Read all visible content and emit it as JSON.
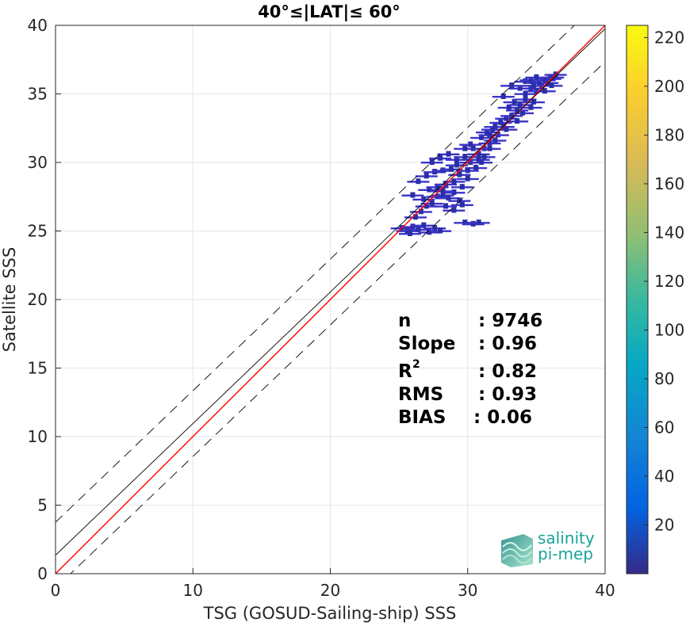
{
  "chart_data": {
    "type": "heatmap",
    "title": "40°≤|LAT|≤ 60°",
    "xlabel": "TSG (GOSUD-Sailing-ship) SSS",
    "ylabel": "Satellite SSS",
    "xlim": [
      0,
      40
    ],
    "ylim": [
      0,
      40
    ],
    "xticks": [
      "0",
      "10",
      "20",
      "30",
      "40"
    ],
    "yticks": [
      "0",
      "5",
      "10",
      "15",
      "20",
      "25",
      "30",
      "35",
      "40"
    ],
    "grid": true,
    "colorbar": {
      "range": [
        0,
        225
      ],
      "ticks": [
        "20",
        "40",
        "60",
        "80",
        "100",
        "120",
        "140",
        "160",
        "180",
        "200",
        "220"
      ],
      "colormap": "parula"
    },
    "lines": [
      {
        "name": "identity",
        "slope": 1,
        "intercept": 0,
        "color": "#ff0000",
        "style": "solid"
      },
      {
        "name": "regression",
        "slope": 0.96,
        "intercept": 1.35,
        "color": "#000000",
        "style": "solid"
      },
      {
        "name": "upper",
        "slope": 0.96,
        "intercept": 3.75,
        "color": "#000000",
        "style": "dashed"
      },
      {
        "name": "lower",
        "slope": 0.96,
        "intercept": -1.05,
        "color": "#000000",
        "style": "dashed"
      }
    ],
    "density_points": [
      [
        25.2,
        25.2
      ],
      [
        25.6,
        25.0
      ],
      [
        26.0,
        25.3
      ],
      [
        26.4,
        25.1
      ],
      [
        26.8,
        25.4
      ],
      [
        27.2,
        24.9
      ],
      [
        25.8,
        24.8
      ],
      [
        27.6,
        25.2
      ],
      [
        28.0,
        25.0
      ],
      [
        29.8,
        25.6
      ],
      [
        30.4,
        25.5
      ],
      [
        30.8,
        25.6
      ],
      [
        26.2,
        26.0
      ],
      [
        26.6,
        26.4
      ],
      [
        27.0,
        26.8
      ],
      [
        27.4,
        27.0
      ],
      [
        26.8,
        27.3
      ],
      [
        27.8,
        27.5
      ],
      [
        28.2,
        27.6
      ],
      [
        28.6,
        27.4
      ],
      [
        29.0,
        27.8
      ],
      [
        29.4,
        27.2
      ],
      [
        28.4,
        26.8
      ],
      [
        29.0,
        26.5
      ],
      [
        29.6,
        26.9
      ],
      [
        27.2,
        28.0
      ],
      [
        27.8,
        28.2
      ],
      [
        28.4,
        28.4
      ],
      [
        29.0,
        28.6
      ],
      [
        29.6,
        28.2
      ],
      [
        30.0,
        28.8
      ],
      [
        26.4,
        28.6
      ],
      [
        27.0,
        29.0
      ],
      [
        27.6,
        29.3
      ],
      [
        28.2,
        29.4
      ],
      [
        28.8,
        29.5
      ],
      [
        29.4,
        29.1
      ],
      [
        27.4,
        30.0
      ],
      [
        28.0,
        30.3
      ],
      [
        28.6,
        30.6
      ],
      [
        29.2,
        30.2
      ],
      [
        29.8,
        30.4
      ],
      [
        30.2,
        30.0
      ],
      [
        30.6,
        29.6
      ],
      [
        30.4,
        31.0
      ],
      [
        30.8,
        30.6
      ],
      [
        31.2,
        31.0
      ],
      [
        31.6,
        31.4
      ],
      [
        29.8,
        31.0
      ],
      [
        30.2,
        31.3
      ],
      [
        31.0,
        31.8
      ],
      [
        31.4,
        32.2
      ],
      [
        31.8,
        32.4
      ],
      [
        32.2,
        32.0
      ],
      [
        32.6,
        32.6
      ],
      [
        31.6,
        31.0
      ],
      [
        32.0,
        31.6
      ],
      [
        32.4,
        32.9
      ],
      [
        32.8,
        33.2
      ],
      [
        33.2,
        33.4
      ],
      [
        33.6,
        33.0
      ],
      [
        34.0,
        33.6
      ],
      [
        33.0,
        34.0
      ],
      [
        33.4,
        34.4
      ],
      [
        33.8,
        34.2
      ],
      [
        34.2,
        34.6
      ],
      [
        34.6,
        34.0
      ],
      [
        34.2,
        35.0
      ],
      [
        34.6,
        35.4
      ],
      [
        35.0,
        35.2
      ],
      [
        35.4,
        35.6
      ],
      [
        35.8,
        35.8
      ],
      [
        36.0,
        36.1
      ],
      [
        36.2,
        36.2
      ],
      [
        35.6,
        36.0
      ],
      [
        35.2,
        35.8
      ],
      [
        34.8,
        35.6
      ],
      [
        36.4,
        36.4
      ],
      [
        33.8,
        35.4
      ],
      [
        34.2,
        35.9
      ],
      [
        34.6,
        36.0
      ],
      [
        31.2,
        30.4
      ],
      [
        30.8,
        30.2
      ],
      [
        31.6,
        32.0
      ],
      [
        32.0,
        32.6
      ],
      [
        32.8,
        32.4
      ],
      [
        33.6,
        33.8
      ],
      [
        34.8,
        34.4
      ],
      [
        35.6,
        35.2
      ],
      [
        33.2,
        35.6
      ],
      [
        32.6,
        34.8
      ],
      [
        30.0,
        29.4
      ],
      [
        28.2,
        27.9
      ],
      [
        26.0,
        27.6
      ],
      [
        29.2,
        29.8
      ],
      [
        31.0,
        30.0
      ],
      [
        35.0,
        36.2
      ],
      [
        36.1,
        35.6
      ]
    ],
    "stats": {
      "n_label": "n",
      "n_value": ": 9746",
      "slope_label": "Slope",
      "slope_value": ": 0.96",
      "r2_label": "R",
      "r2_sup": "2",
      "r2_value": ": 0.82",
      "rms_label": "RMS",
      "rms_value": ": 0.93",
      "bias_label": "BIAS",
      "bias_value": ": 0.06"
    },
    "logo": {
      "line1": "salinity",
      "line2": "pi-mep",
      "color": "#1aa39a"
    }
  }
}
